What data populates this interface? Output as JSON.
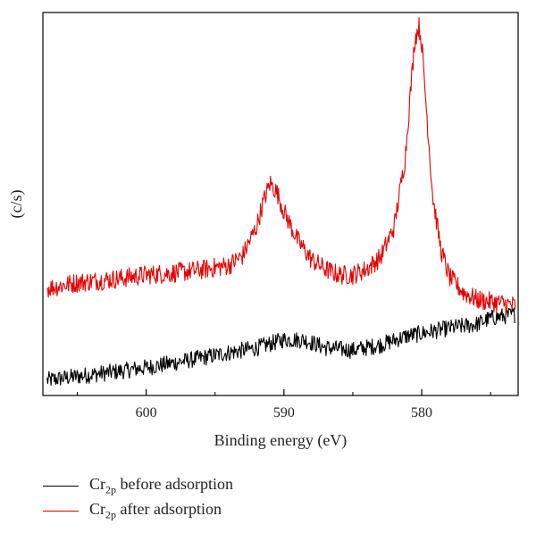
{
  "chart_data": {
    "type": "line",
    "title": "",
    "xlabel": "Binding energy (eV)",
    "ylabel": "(c/s)",
    "xlim": [
      607.5,
      573.0
    ],
    "x_reversed": true,
    "ylim": [
      0,
      100
    ],
    "y_ticks_shown": false,
    "grid": false,
    "x_ticks": [
      600,
      590,
      580
    ],
    "x_minor_ticks": [
      605,
      595,
      585,
      575
    ],
    "legend_position": "bottom-left",
    "series": [
      {
        "name": "Cr2p before adsorption",
        "name_main": "Cr",
        "name_sub": "2p",
        "name_suffix": " before adsorption",
        "color": "#000000",
        "noise": 2.2,
        "x": [
          607.2,
          605,
          602,
          600,
          598,
          596,
          594,
          592,
          590,
          588.5,
          587,
          585,
          583,
          581,
          580,
          578,
          576,
          575,
          573.2
        ],
        "values": [
          4.0,
          5.0,
          6.3,
          7.3,
          8.5,
          9.8,
          11.2,
          12.4,
          14.6,
          14.5,
          12.5,
          11.8,
          13.2,
          15.6,
          16.2,
          17.6,
          18.6,
          20.2,
          21.2
        ]
      },
      {
        "name": "Cr2p after adsorption",
        "name_main": "Cr",
        "name_sub": "2p",
        "name_suffix": " after adsorption",
        "color": "#e60000",
        "noise": 2.6,
        "x": [
          607.2,
          605,
          602,
          600,
          598,
          596,
          594,
          593,
          592,
          591.5,
          591,
          590.5,
          590,
          589,
          588,
          587,
          586,
          585,
          584,
          583,
          582,
          581.2,
          580.8,
          580.5,
          580.2,
          580,
          579.6,
          579.2,
          578.6,
          578,
          577,
          576,
          575,
          573.2
        ],
        "values": [
          28.0,
          29.5,
          30.5,
          31.5,
          32.0,
          32.8,
          34.0,
          36.5,
          44.0,
          50.5,
          55.5,
          53.0,
          48.0,
          40.5,
          35.5,
          33.0,
          31.5,
          31.5,
          33.0,
          36.0,
          44.0,
          62.0,
          80.0,
          93.0,
          96.5,
          92.0,
          72.0,
          52.0,
          38.0,
          31.0,
          27.0,
          25.0,
          24.5,
          23.5
        ]
      }
    ]
  }
}
